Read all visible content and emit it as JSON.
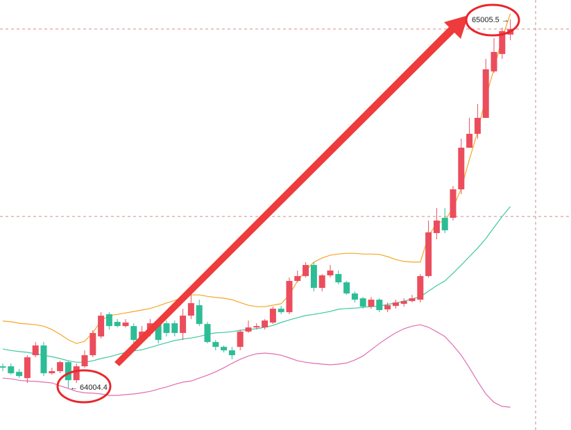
{
  "chart_data": {
    "type": "candlestick",
    "ylim": [
      63890,
      65058
    ],
    "up_color": "#eb4d5c",
    "down_color": "#2dbd96",
    "open": [
      64063.0,
      64063.0,
      64047.9,
      64031.0,
      64093.2,
      64119.6,
      64044.2,
      64049.8,
      64074.3,
      64025.3,
      64063.0,
      64093.2,
      64144.1,
      64204.4,
      64183.7,
      64172.3,
      64172.3,
      64134.6,
      64153.5,
      64179.9,
      64179.9,
      64179.9,
      64153.5,
      64200.6,
      64228.9,
      64178.0,
      64129.0,
      64115.8,
      64106.4,
      64115.8,
      64157.3,
      64168.6,
      64168.6,
      64181.8,
      64219.5,
      64210.0,
      64294.9,
      64308.1,
      64338.2,
      64276.0,
      64310.0,
      64313.7,
      64291.1,
      64260.9,
      64247.7,
      64225.1,
      64244.0,
      64217.6,
      64227.0,
      64232.7,
      64240.2,
      64244.0,
      64308.1,
      64424.9,
      64466.4,
      64466.4,
      64543.7,
      64656.8,
      64694.5,
      64737.8,
      64864.1,
      64911.3,
      64964.0
    ],
    "high": [
      64070.6,
      64070.6,
      64055.5,
      64093.2,
      64129.0,
      64129.0,
      64059.3,
      64078.1,
      64078.1,
      64070.6,
      64106.4,
      64161.0,
      64210.0,
      64210.0,
      64191.2,
      64191.2,
      64179.9,
      64172.3,
      64191.2,
      64187.4,
      64187.4,
      64187.4,
      64219.5,
      64257.2,
      64244.0,
      64183.7,
      64134.6,
      64119.6,
      64115.8,
      64162.9,
      64187.4,
      64179.9,
      64191.2,
      64225.1,
      64227.0,
      64304.3,
      64323.1,
      64345.8,
      64345.8,
      64313.7,
      64338.2,
      64323.1,
      64294.9,
      64266.6,
      64251.5,
      64251.5,
      64247.7,
      64236.4,
      64244.0,
      64247.7,
      64257.2,
      64313.7,
      64458.9,
      64492.8,
      64492.8,
      64553.1,
      64681.3,
      64737.8,
      64775.5,
      64898.1,
      64954.6,
      64982.9,
      65005.5
    ],
    "low": [
      64049.8,
      64040.4,
      64031.0,
      64017.8,
      64087.5,
      64036.6,
      64040.4,
      64044.2,
      64004.4,
      64017.8,
      64059.3,
      64087.5,
      64138.4,
      64162.9,
      64168.6,
      64168.6,
      64125.2,
      64125.2,
      64144.1,
      64125.2,
      64144.1,
      64144.1,
      64134.6,
      64191.2,
      64172.3,
      64125.2,
      64106.4,
      64100.7,
      64081.9,
      64106.4,
      64153.5,
      64162.9,
      64162.9,
      64178.0,
      64204.4,
      64204.4,
      64291.1,
      64304.3,
      64266.6,
      64266.6,
      64304.3,
      64285.4,
      64257.2,
      64236.4,
      64219.5,
      64219.5,
      64210.0,
      64210.0,
      64219.5,
      64225.1,
      64236.4,
      64236.4,
      64304.3,
      64408.0,
      64424.9,
      64458.9,
      64530.5,
      64656.8,
      64681.3,
      64737.8,
      64860.4,
      64898.1,
      64949.0
    ],
    "close": [
      64059.3,
      64044.2,
      64036.6,
      64087.5,
      64119.6,
      64044.2,
      64049.8,
      64074.3,
      64025.3,
      64063.0,
      64093.2,
      64153.5,
      64200.6,
      64172.3,
      64172.3,
      64181.8,
      64134.6,
      64157.3,
      64179.9,
      64134.6,
      64153.5,
      64153.5,
      64200.6,
      64234.6,
      64178.0,
      64129.0,
      64115.8,
      64106.4,
      64093.2,
      64157.3,
      64168.6,
      64172.3,
      64187.4,
      64219.5,
      64210.0,
      64294.9,
      64308.1,
      64338.2,
      64276.0,
      64310.0,
      64323.1,
      64291.1,
      64260.9,
      64244.0,
      64225.1,
      64244.0,
      64215.7,
      64228.9,
      64236.4,
      64240.2,
      64247.7,
      64308.1,
      64426.8,
      64458.9,
      64432.5,
      64543.7,
      64656.8,
      64694.5,
      64737.8,
      64869.8,
      64916.9,
      64973.5,
      64979.1
    ],
    "lines": [
      {
        "color": "#f5a623",
        "values": [
          64186,
          64184,
          64180,
          64178,
          64176,
          64172,
          64163,
          64150,
          64135,
          64125,
          64131,
          64154,
          64187,
          64201,
          64204,
          64208,
          64212,
          64216,
          64220,
          64227,
          64235,
          64242,
          64250,
          64257,
          64257,
          64253,
          64250,
          64248,
          64244,
          64236,
          64229,
          64225,
          64225,
          64229,
          64233,
          64257,
          64295,
          64323,
          64346,
          64357,
          64365,
          64368,
          64370,
          64370,
          64368,
          64368,
          64367,
          64361,
          64353,
          64348,
          64346,
          64346,
          64417,
          64451,
          64459,
          64493,
          64546,
          64625,
          64700,
          64794,
          64870,
          64955,
          65021
        ]
      },
      {
        "color": "#3cc8a0",
        "values": [
          64110,
          64106,
          64103,
          64101,
          64097,
          64093,
          64089,
          64084,
          64078,
          64074,
          64074,
          64078,
          64084,
          64089,
          64095,
          64101,
          64105,
          64108,
          64114,
          64121,
          64127,
          64133,
          64137,
          64140,
          64144,
          64150,
          64154,
          64155,
          64157,
          64161,
          64163,
          64165,
          64169,
          64174,
          64182,
          64189,
          64195,
          64201,
          64204,
          64208,
          64212,
          64218,
          64220,
          64221,
          64223,
          64225,
          64227,
          64231,
          64235,
          64240,
          64246,
          64252,
          64267,
          64282,
          64295,
          64316,
          64338,
          64361,
          64384,
          64410,
          64440,
          64470,
          64497
        ]
      },
      {
        "color": "#e06cb0",
        "values": [
          64031,
          64029,
          64025,
          64023,
          64022,
          64020,
          64018,
          64010,
          64003,
          63995,
          63991,
          63990,
          63988,
          63984,
          63984,
          63986,
          63988,
          63991,
          63995,
          64001,
          64007,
          64014,
          64020,
          64023,
          64031,
          64039,
          64048,
          64059,
          64071,
          64082,
          64091,
          64097,
          64099,
          64097,
          64093,
          64086,
          64078,
          64074,
          64071,
          64069,
          64067,
          64069,
          64072,
          64080,
          64091,
          64108,
          64125,
          64140,
          64154,
          64165,
          64172,
          64176,
          64169,
          64157,
          64144,
          64120,
          64093,
          64059,
          64022,
          63988,
          63965,
          63954,
          63952
        ]
      }
    ],
    "hlines": [
      64979.1,
      64470
    ],
    "high_label": "65005.5 →",
    "low_label": "← 64004.4"
  }
}
